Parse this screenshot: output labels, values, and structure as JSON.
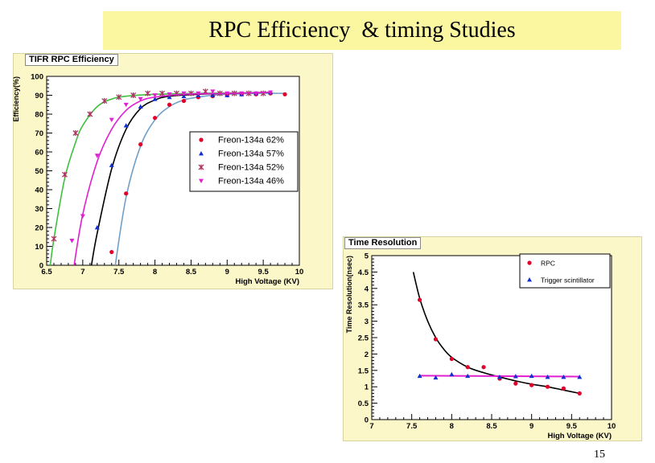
{
  "slide": {
    "title": "RPC Efficiency  & timing Studies",
    "page_number": "15"
  },
  "chart_data": [
    {
      "type": "line",
      "title": "TIFR RPC Efficiency",
      "xlabel": "High Voltage (KV)",
      "ylabel": "Efficiency(%)",
      "xlim": [
        6.5,
        10
      ],
      "ylim": [
        0,
        100
      ],
      "xticks": [
        "6.5",
        "7",
        "7.5",
        "8",
        "8.5",
        "9",
        "9.5",
        "10"
      ],
      "yticks": [
        "0",
        "10",
        "20",
        "30",
        "40",
        "50",
        "60",
        "70",
        "80",
        "90",
        "100"
      ],
      "legend_position": "right",
      "grid": false,
      "series": [
        {
          "name": "Freon-134a  62%",
          "marker": "circle",
          "color": "#e0002a",
          "points": [
            [
              7.4,
              7
            ],
            [
              7.6,
              38
            ],
            [
              7.8,
              64
            ],
            [
              8.0,
              78
            ],
            [
              8.2,
              85
            ],
            [
              8.4,
              87
            ],
            [
              8.6,
              89
            ],
            [
              8.8,
              89.5
            ],
            [
              9.0,
              90
            ],
            [
              9.2,
              90.5
            ],
            [
              9.4,
              90.5
            ],
            [
              9.6,
              91
            ],
            [
              9.8,
              90.5
            ]
          ],
          "curve": [
            [
              7.45,
              0
            ],
            [
              7.6,
              36
            ],
            [
              7.8,
              63
            ],
            [
              8.0,
              77
            ],
            [
              8.2,
              84
            ],
            [
              8.4,
              87.5
            ],
            [
              8.6,
              89
            ],
            [
              8.8,
              90
            ],
            [
              9.0,
              90.5
            ],
            [
              9.4,
              91
            ],
            [
              9.8,
              91
            ]
          ]
        },
        {
          "name": "Freon-134a  57%",
          "marker": "triangle-up",
          "color": "#1030d0",
          "points": [
            [
              7.2,
              20
            ],
            [
              7.4,
              53
            ],
            [
              7.6,
              74
            ],
            [
              7.8,
              84
            ],
            [
              8.0,
              88
            ],
            [
              8.2,
              89
            ],
            [
              8.4,
              89.5
            ],
            [
              8.6,
              90
            ],
            [
              8.8,
              90
            ],
            [
              9.0,
              90
            ],
            [
              9.2,
              90.5
            ],
            [
              9.4,
              91
            ],
            [
              9.6,
              91.5
            ]
          ],
          "curve": [
            [
              7.12,
              0
            ],
            [
              7.2,
              17
            ],
            [
              7.4,
              51
            ],
            [
              7.6,
              72
            ],
            [
              7.8,
              83
            ],
            [
              8.0,
              87.5
            ],
            [
              8.2,
              89.5
            ],
            [
              8.6,
              90.5
            ],
            [
              9.0,
              91
            ],
            [
              9.6,
              91.5
            ]
          ]
        },
        {
          "name": "Freon-134a  52%",
          "marker": "star",
          "color": "#b03060",
          "points": [
            [
              6.6,
              14
            ],
            [
              6.75,
              48
            ],
            [
              6.9,
              70
            ],
            [
              7.1,
              80
            ],
            [
              7.3,
              87
            ],
            [
              7.5,
              89
            ],
            [
              7.7,
              90
            ],
            [
              7.9,
              91
            ],
            [
              8.1,
              91
            ],
            [
              8.3,
              91
            ],
            [
              8.5,
              91
            ],
            [
              8.7,
              92
            ],
            [
              8.9,
              91
            ],
            [
              9.1,
              91
            ],
            [
              9.3,
              91
            ],
            [
              9.5,
              91
            ]
          ],
          "curve": [
            [
              6.55,
              0
            ],
            [
              6.6,
              14
            ],
            [
              6.75,
              46
            ],
            [
              6.9,
              65
            ],
            [
              7.0,
              74
            ],
            [
              7.2,
              84
            ],
            [
              7.4,
              88
            ],
            [
              7.6,
              89.5
            ],
            [
              8.0,
              90.5
            ],
            [
              8.6,
              91
            ],
            [
              9.6,
              91.5
            ]
          ]
        },
        {
          "name": "Freon-134a  46%",
          "marker": "triangle-down",
          "color": "#e020d0",
          "points": [
            [
              6.85,
              13
            ],
            [
              7.0,
              26
            ],
            [
              7.2,
              58
            ],
            [
              7.4,
              77
            ],
            [
              7.6,
              85
            ],
            [
              7.8,
              88
            ],
            [
              8.0,
              90
            ],
            [
              8.2,
              90.5
            ],
            [
              8.4,
              91
            ],
            [
              8.6,
              91
            ],
            [
              8.8,
              92
            ],
            [
              9.0,
              91
            ],
            [
              9.2,
              91
            ],
            [
              9.4,
              91
            ],
            [
              9.6,
              91.5
            ]
          ],
          "curve": [
            [
              6.88,
              0
            ],
            [
              7.0,
              27
            ],
            [
              7.2,
              55
            ],
            [
              7.4,
              72
            ],
            [
              7.6,
              82
            ],
            [
              7.8,
              87
            ],
            [
              8.0,
              89
            ],
            [
              8.4,
              90.5
            ],
            [
              9.0,
              91
            ],
            [
              9.6,
              91.5
            ]
          ]
        }
      ]
    },
    {
      "type": "scatter",
      "title": "Time Resolution",
      "xlabel": "High Voltage (KV)",
      "ylabel": "Time Resolution(nsec)",
      "xlim": [
        7,
        10
      ],
      "ylim": [
        0,
        5
      ],
      "xticks": [
        "7",
        "7.5",
        "8",
        "8.5",
        "9",
        "9.5",
        "10"
      ],
      "yticks": [
        "0",
        "0.5",
        "1",
        "1.5",
        "2",
        "2.5",
        "3",
        "3.5",
        "4",
        "4.5",
        "5"
      ],
      "legend_position": "top-right",
      "grid": false,
      "series": [
        {
          "name": "RPC",
          "marker": "circle",
          "color": "#e0002a",
          "points": [
            [
              7.6,
              3.65
            ],
            [
              7.8,
              2.45
            ],
            [
              8.0,
              1.85
            ],
            [
              8.2,
              1.6
            ],
            [
              8.4,
              1.6
            ],
            [
              8.6,
              1.25
            ],
            [
              8.8,
              1.1
            ],
            [
              9.0,
              1.05
            ],
            [
              9.2,
              1.0
            ],
            [
              9.4,
              0.95
            ],
            [
              9.6,
              0.8
            ]
          ],
          "curve": [
            [
              7.52,
              4.5
            ],
            [
              7.6,
              3.7
            ],
            [
              7.7,
              3.0
            ],
            [
              7.8,
              2.5
            ],
            [
              7.9,
              2.15
            ],
            [
              8.0,
              1.9
            ],
            [
              8.2,
              1.6
            ],
            [
              8.4,
              1.43
            ],
            [
              8.6,
              1.3
            ],
            [
              8.8,
              1.18
            ],
            [
              9.0,
              1.08
            ],
            [
              9.2,
              1.0
            ],
            [
              9.4,
              0.9
            ],
            [
              9.6,
              0.8
            ]
          ]
        },
        {
          "name": "Trigger scintillator",
          "marker": "triangle-up",
          "color": "#1030d0",
          "points": [
            [
              7.6,
              1.33
            ],
            [
              7.8,
              1.28
            ],
            [
              8.0,
              1.38
            ],
            [
              8.2,
              1.33
            ],
            [
              8.6,
              1.3
            ],
            [
              8.8,
              1.32
            ],
            [
              9.0,
              1.33
            ],
            [
              9.2,
              1.3
            ],
            [
              9.4,
              1.3
            ],
            [
              9.6,
              1.3
            ]
          ],
          "fit_line": [
            [
              7.6,
              1.34
            ],
            [
              9.6,
              1.31
            ]
          ]
        }
      ]
    }
  ]
}
